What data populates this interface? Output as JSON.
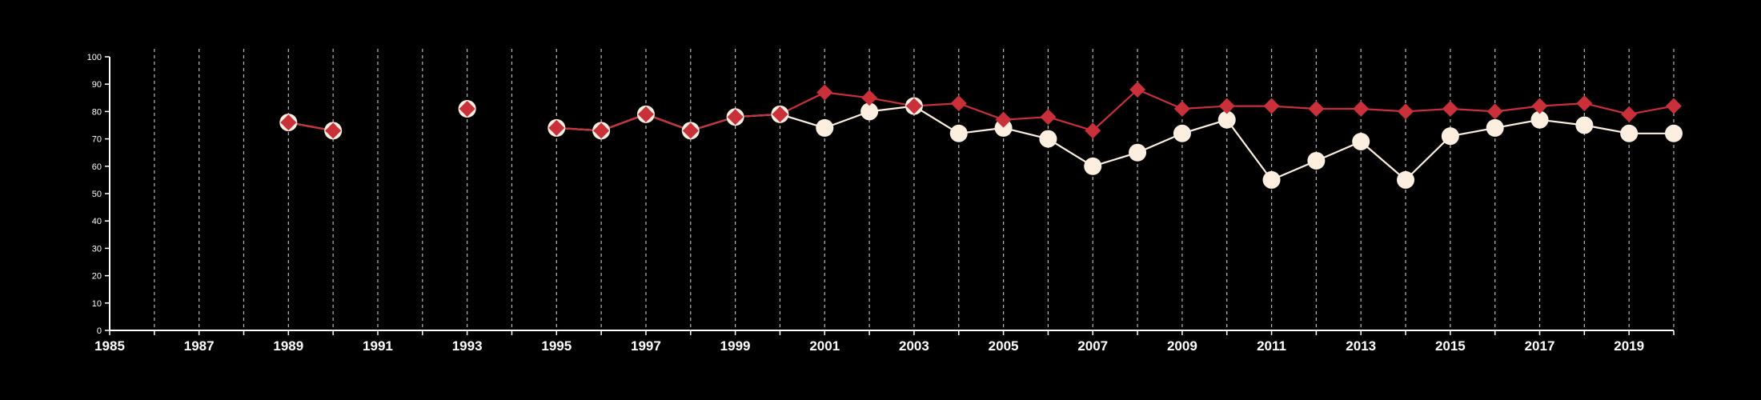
{
  "chart_data": {
    "type": "line",
    "title": "",
    "xlabel": "",
    "ylabel": "",
    "xlim": [
      1985,
      2020
    ],
    "ylim": [
      0,
      100
    ],
    "x_ticks": [
      "1985",
      "1987",
      "1989",
      "1991",
      "1993",
      "1995",
      "1997",
      "1999",
      "2001",
      "2003",
      "2005",
      "2007",
      "2009",
      "2011",
      "2013",
      "2015",
      "2017",
      "2019"
    ],
    "y_ticks": [
      "0",
      "10",
      "20",
      "30",
      "40",
      "50",
      "60",
      "70",
      "80",
      "90",
      "100"
    ],
    "grid": "vertical dashed",
    "legend": "none",
    "colors": {
      "background": "#000000",
      "axis": "#ffffff",
      "grid": "#bbbbbb",
      "series_circle": "#fdefe0",
      "series_diamond": "#c9303a"
    },
    "series": [
      {
        "marker": "circle",
        "color": "#fdefe0",
        "points": [
          [
            1989,
            76
          ],
          [
            1990,
            73
          ],
          [
            1993,
            81
          ],
          [
            1995,
            74
          ],
          [
            1996,
            73
          ],
          [
            1997,
            79
          ],
          [
            1998,
            73
          ],
          [
            1999,
            78
          ],
          [
            2000,
            79
          ],
          [
            2001,
            74
          ],
          [
            2002,
            80
          ],
          [
            2003,
            82
          ],
          [
            2004,
            72
          ],
          [
            2005,
            74
          ],
          [
            2006,
            70
          ],
          [
            2007,
            60
          ],
          [
            2008,
            65
          ],
          [
            2009,
            72
          ],
          [
            2010,
            77
          ],
          [
            2011,
            55
          ],
          [
            2012,
            62
          ],
          [
            2013,
            69
          ],
          [
            2014,
            55
          ],
          [
            2015,
            71
          ],
          [
            2016,
            74
          ],
          [
            2017,
            77
          ],
          [
            2018,
            75
          ],
          [
            2019,
            72
          ],
          [
            2020,
            72
          ]
        ]
      },
      {
        "marker": "diamond",
        "color": "#c9303a",
        "points": [
          [
            1989,
            76
          ],
          [
            1990,
            73
          ],
          [
            1993,
            81
          ],
          [
            1995,
            74
          ],
          [
            1996,
            73
          ],
          [
            1997,
            79
          ],
          [
            1998,
            73
          ],
          [
            1999,
            78
          ],
          [
            2000,
            79
          ],
          [
            2001,
            87
          ],
          [
            2002,
            85
          ],
          [
            2003,
            82
          ],
          [
            2004,
            83
          ],
          [
            2005,
            77
          ],
          [
            2006,
            78
          ],
          [
            2007,
            73
          ],
          [
            2008,
            88
          ],
          [
            2009,
            81
          ],
          [
            2010,
            82
          ],
          [
            2011,
            82
          ],
          [
            2012,
            81
          ],
          [
            2013,
            81
          ],
          [
            2014,
            80
          ],
          [
            2015,
            81
          ],
          [
            2016,
            80
          ],
          [
            2017,
            82
          ],
          [
            2018,
            83
          ],
          [
            2019,
            79
          ],
          [
            2020,
            82
          ]
        ]
      }
    ]
  }
}
